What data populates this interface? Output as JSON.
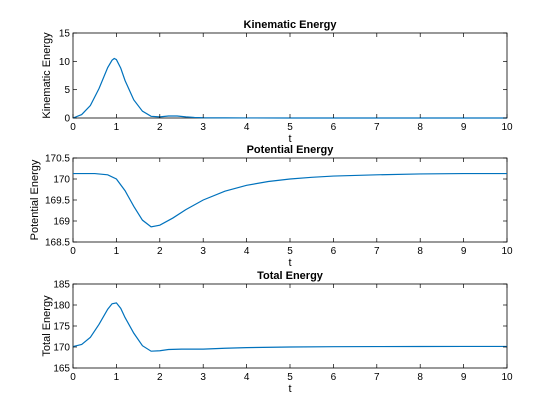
{
  "chart_data": [
    {
      "type": "line",
      "title": "Kinematic Energy",
      "xlabel": "t",
      "ylabel": "Kinematic Energy",
      "xlim": [
        0,
        10
      ],
      "ylim": [
        0,
        15
      ],
      "xticks": [
        0,
        1,
        2,
        3,
        4,
        5,
        6,
        7,
        8,
        9,
        10
      ],
      "yticks": [
        0,
        5,
        10,
        15
      ],
      "grid": false,
      "color": "#0072BD",
      "series": [
        {
          "x": [
            0,
            0.2,
            0.4,
            0.6,
            0.8,
            0.9,
            0.95,
            1.0,
            1.1,
            1.2,
            1.4,
            1.6,
            1.8,
            2.0,
            2.2,
            2.4,
            2.6,
            2.8,
            3.0,
            3.5,
            4.0,
            5.0,
            6.0,
            7.0,
            8.0,
            9.0,
            10.0
          ],
          "y": [
            0,
            0.6,
            2.2,
            5.2,
            8.9,
            10.2,
            10.5,
            10.3,
            8.8,
            6.6,
            3.2,
            1.2,
            0.3,
            0.2,
            0.35,
            0.35,
            0.2,
            0.1,
            0.05,
            0.02,
            0.01,
            0,
            0,
            0,
            0,
            0,
            0
          ]
        }
      ]
    },
    {
      "type": "line",
      "title": "Potential Energy",
      "xlabel": "t",
      "ylabel": "Potential Energy",
      "xlim": [
        0,
        10
      ],
      "ylim": [
        168.5,
        170.5
      ],
      "xticks": [
        0,
        1,
        2,
        3,
        4,
        5,
        6,
        7,
        8,
        9,
        10
      ],
      "yticks": [
        168.5,
        169,
        169.5,
        170,
        170.5
      ],
      "grid": false,
      "color": "#0072BD",
      "series": [
        {
          "x": [
            0,
            0.5,
            0.8,
            1.0,
            1.2,
            1.4,
            1.6,
            1.8,
            2.0,
            2.3,
            2.6,
            3.0,
            3.5,
            4.0,
            4.5,
            5.0,
            5.5,
            6.0,
            7.0,
            8.0,
            9.0,
            10.0
          ],
          "y": [
            170.13,
            170.13,
            170.1,
            170.0,
            169.72,
            169.35,
            169.02,
            168.86,
            168.9,
            169.07,
            169.27,
            169.5,
            169.71,
            169.85,
            169.94,
            170.0,
            170.04,
            170.07,
            170.1,
            170.12,
            170.13,
            170.13
          ]
        }
      ]
    },
    {
      "type": "line",
      "title": "Total Energy",
      "xlabel": "t",
      "ylabel": "Total Energy",
      "xlim": [
        0,
        10
      ],
      "ylim": [
        165,
        185
      ],
      "xticks": [
        0,
        1,
        2,
        3,
        4,
        5,
        6,
        7,
        8,
        9,
        10
      ],
      "yticks": [
        165,
        170,
        175,
        180,
        185
      ],
      "grid": false,
      "color": "#0072BD",
      "series": [
        {
          "x": [
            0,
            0.2,
            0.4,
            0.6,
            0.8,
            0.9,
            1.0,
            1.1,
            1.2,
            1.4,
            1.6,
            1.8,
            2.0,
            2.2,
            2.5,
            3.0,
            3.5,
            4.0,
            5.0,
            6.0,
            7.0,
            8.0,
            9.0,
            10.0
          ],
          "y": [
            170.1,
            170.6,
            172.3,
            175.4,
            179.0,
            180.3,
            180.5,
            179.2,
            177.0,
            173.3,
            170.3,
            169.0,
            169.1,
            169.4,
            169.5,
            169.5,
            169.7,
            169.85,
            170.0,
            170.07,
            170.1,
            170.12,
            170.13,
            170.13
          ]
        }
      ]
    }
  ]
}
